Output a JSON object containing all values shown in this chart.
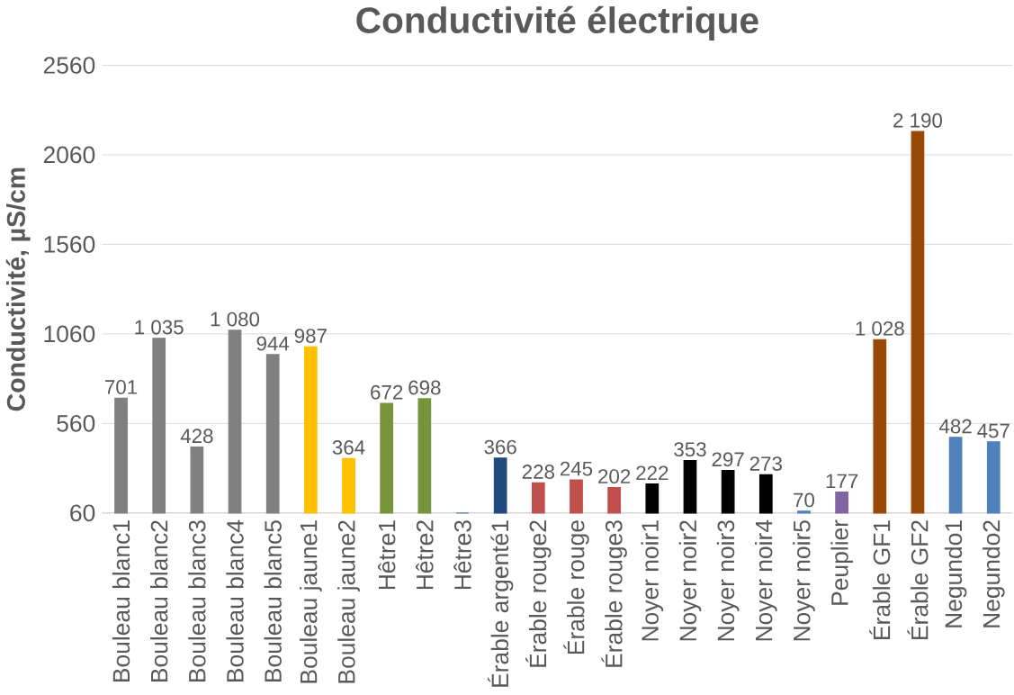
{
  "chart_data": {
    "type": "bar",
    "title": "Conductivité électrique",
    "ylabel": "Conductivité, µS/cm",
    "categories": [
      "Bouleau blanc1",
      "Bouleau blanc2",
      "Bouleau blanc3",
      "Bouleau blanc4",
      "Bouleau blanc5",
      "Bouleau jaune1",
      "Bouleau jaune2",
      "Hêtre1",
      "Hêtre2",
      "Hêtre3",
      "Érable argenté1",
      "Érable rouge2",
      "Érable rouge",
      "Érable rouge3",
      "Noyer noir1",
      "Noyer noir2",
      "Noyer noir3",
      "Noyer noir4",
      "Noyer noir5",
      "Peuplier",
      "Érable GF1",
      "Érable GF2",
      "Negundo1",
      "Negundo2"
    ],
    "values": [
      701,
      1035,
      428,
      1080,
      944,
      987,
      364,
      672,
      698,
      60,
      366,
      228,
      245,
      202,
      222,
      353,
      297,
      273,
      70,
      177,
      1028,
      2190,
      482,
      457
    ],
    "value_labels": [
      "701",
      "1 035",
      "428",
      "1 080",
      "944",
      "987",
      "364",
      "672",
      "698",
      null,
      "366",
      "228",
      "245",
      "202",
      "222",
      "353",
      "297",
      "273",
      "70",
      "177",
      "1 028",
      "2 190",
      "482",
      "457"
    ],
    "colors": [
      "#808080",
      "#808080",
      "#808080",
      "#808080",
      "#808080",
      "#ffc000",
      "#ffc000",
      "#77933c",
      "#77933c",
      "#4f81bd",
      "#1f497d",
      "#c0504d",
      "#c0504d",
      "#c0504d",
      "#000000",
      "#000000",
      "#000000",
      "#000000",
      "#4f81bd",
      "#8064a2",
      "#984807",
      "#984807",
      "#4f81bd",
      "#4f81bd"
    ],
    "ylim": [
      60,
      2560
    ],
    "yticks": [
      60,
      560,
      1060,
      1560,
      2060,
      2560
    ],
    "grid": "y",
    "legend": false
  }
}
